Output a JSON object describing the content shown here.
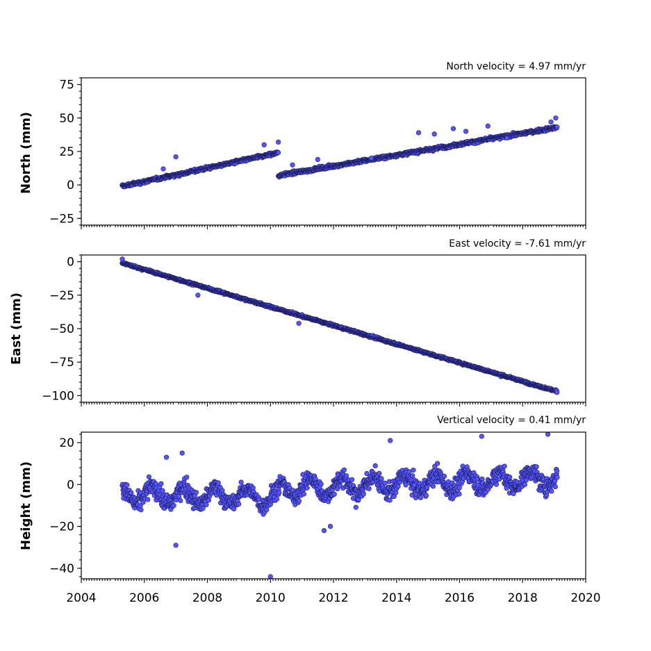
{
  "chart_data": [
    {
      "type": "scatter",
      "panel": "north",
      "title": "North velocity = 4.97 mm/yr",
      "ylabel": "North (mm)",
      "xlim": [
        2004,
        2020
      ],
      "ylim": [
        -30,
        80
      ],
      "yticks": [
        -25,
        0,
        25,
        50,
        75
      ],
      "xticks": [
        2004,
        2006,
        2008,
        2010,
        2012,
        2014,
        2016,
        2018,
        2020
      ],
      "show_xtick_labels": false,
      "velocity_mm_per_yr": 4.97,
      "segments": [
        {
          "x_start": 2005.3,
          "x_end": 2010.25,
          "y_start": -1,
          "y_end": 24
        },
        {
          "x_start": 2010.25,
          "x_end": 2019.1,
          "y_start": 7,
          "y_end": 43
        }
      ],
      "noise_mm": 1.5,
      "outliers": [
        {
          "x": 2010.25,
          "y": 32
        },
        {
          "x": 2009.8,
          "y": 30
        },
        {
          "x": 2007.0,
          "y": 21
        },
        {
          "x": 2011.5,
          "y": 19
        },
        {
          "x": 2014.7,
          "y": 39
        },
        {
          "x": 2015.2,
          "y": 38
        },
        {
          "x": 2015.8,
          "y": 42
        },
        {
          "x": 2016.2,
          "y": 40
        },
        {
          "x": 2016.9,
          "y": 44
        },
        {
          "x": 2017.5,
          "y": 35
        },
        {
          "x": 2018.9,
          "y": 47
        },
        {
          "x": 2019.05,
          "y": 50
        },
        {
          "x": 2010.7,
          "y": 15
        },
        {
          "x": 2013.2,
          "y": 20
        },
        {
          "x": 2006.6,
          "y": 12
        }
      ]
    },
    {
      "type": "scatter",
      "panel": "east",
      "title": "East velocity = -7.61 mm/yr",
      "ylabel": "East (mm)",
      "xlim": [
        2004,
        2020
      ],
      "ylim": [
        -105,
        5
      ],
      "yticks": [
        -100,
        -75,
        -50,
        -25,
        0
      ],
      "xticks": [
        2004,
        2006,
        2008,
        2010,
        2012,
        2014,
        2016,
        2018,
        2020
      ],
      "show_xtick_labels": false,
      "velocity_mm_per_yr": -7.61,
      "segments": [
        {
          "x_start": 2005.3,
          "x_end": 2019.1,
          "y_start": -1,
          "y_end": -97
        }
      ],
      "noise_mm": 1.0,
      "outliers": [
        {
          "x": 2007.7,
          "y": -25
        },
        {
          "x": 2010.9,
          "y": -46
        },
        {
          "x": 2005.3,
          "y": 2
        }
      ]
    },
    {
      "type": "scatter",
      "panel": "height",
      "title": "Vertical velocity = 0.41 mm/yr",
      "ylabel": "Height (mm)",
      "xlim": [
        2004,
        2020
      ],
      "ylim": [
        -45,
        25
      ],
      "yticks": [
        -40,
        -20,
        0,
        20
      ],
      "xticks": [
        2004,
        2006,
        2008,
        2010,
        2012,
        2014,
        2016,
        2018,
        2020
      ],
      "show_xtick_labels": true,
      "velocity_mm_per_yr": 0.41,
      "segments": [
        {
          "x_start": 2005.3,
          "x_end": 2010.3,
          "y_start": -5,
          "y_end": -6
        },
        {
          "x_start": 2010.3,
          "x_end": 2019.1,
          "y_start": -2,
          "y_end": 3
        }
      ],
      "noise_mm": 5.5,
      "outliers": [
        {
          "x": 2010.0,
          "y": -44
        },
        {
          "x": 2007.0,
          "y": -29
        },
        {
          "x": 2016.7,
          "y": 23
        },
        {
          "x": 2018.8,
          "y": 24
        },
        {
          "x": 2013.8,
          "y": 21
        },
        {
          "x": 2011.9,
          "y": -20
        },
        {
          "x": 2011.7,
          "y": -22
        },
        {
          "x": 2007.2,
          "y": 15
        },
        {
          "x": 2006.7,
          "y": 13
        }
      ]
    }
  ],
  "style": {
    "marker_fill": "#5555ff",
    "marker_edge": "#1a1a55",
    "axis_color": "#000000",
    "background": "#ffffff"
  }
}
